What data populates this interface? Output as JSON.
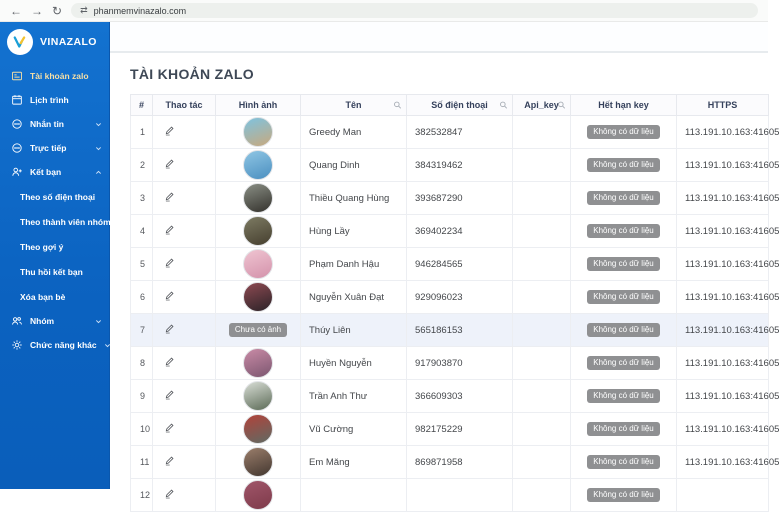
{
  "browser": {
    "url": "phanmemvinazalo.com",
    "back_icon": "←",
    "forward_icon": "→",
    "reload_icon": "↻"
  },
  "sidebar": {
    "brand": "VINAZALO",
    "items": [
      {
        "label": "Tài khoản zalo",
        "icon": "id-card",
        "active": true
      },
      {
        "label": "Lịch trình",
        "icon": "calendar"
      },
      {
        "label": "Nhắn tin",
        "icon": "chat",
        "chevron": "down"
      },
      {
        "label": "Trực tiếp",
        "icon": "chat",
        "chevron": "down"
      },
      {
        "label": "Kết bạn",
        "icon": "person-add",
        "chevron": "up"
      },
      {
        "label": "Theo số điện thoại",
        "sub": true
      },
      {
        "label": "Theo thành viên nhóm",
        "sub": true
      },
      {
        "label": "Theo gợi ý",
        "sub": true
      },
      {
        "label": "Thu hồi kết bạn",
        "sub": true
      },
      {
        "label": "Xóa bạn bè",
        "sub": true
      },
      {
        "label": "Nhóm",
        "icon": "group",
        "chevron": "down"
      },
      {
        "label": "Chức năng khác",
        "icon": "sun",
        "chevron": "down"
      }
    ]
  },
  "main": {
    "title": "TÀI KHOẢN ZALO",
    "table": {
      "columns": [
        {
          "label": "#"
        },
        {
          "label": "Thao tác"
        },
        {
          "label": "Hình ảnh"
        },
        {
          "label": "Tên",
          "searchable": true
        },
        {
          "label": "Số điện thoại",
          "searchable": true
        },
        {
          "label": "Api_key",
          "searchable": true
        },
        {
          "label": "Hết hạn key"
        },
        {
          "label": "HTTPS"
        }
      ],
      "badges": {
        "no_data": "Không có dữ liệu",
        "no_image": "Chưa có ảnh"
      },
      "rows": [
        {
          "index": "1",
          "name": "Greedy Man",
          "phone": "382532847",
          "api_key": "",
          "https": "113.191.10.163:41605",
          "avatar": [
            "#7ec3e0",
            "#c8a97e"
          ]
        },
        {
          "index": "2",
          "name": "Quang Dinh",
          "phone": "384319462",
          "api_key": "",
          "https": "113.191.10.163:41605",
          "avatar": [
            "#8fc6e4",
            "#4b8fc0"
          ]
        },
        {
          "index": "3",
          "name": "Thiều Quang Hùng",
          "phone": "393687290",
          "api_key": "",
          "https": "113.191.10.163:41605",
          "avatar": [
            "#8a8f85",
            "#34322d"
          ]
        },
        {
          "index": "4",
          "name": "Hùng Lầy",
          "phone": "369402234",
          "api_key": "",
          "https": "113.191.10.163:41605",
          "avatar": [
            "#7d7b63",
            "#463f2f"
          ]
        },
        {
          "index": "5",
          "name": "Phạm Danh Hậu",
          "phone": "946284565",
          "api_key": "",
          "https": "113.191.10.163:41605",
          "avatar": [
            "#efc4d1",
            "#d492ab"
          ]
        },
        {
          "index": "6",
          "name": "Nguyễn Xuân Đạt",
          "phone": "929096023",
          "api_key": "",
          "https": "113.191.10.163:41605",
          "avatar": [
            "#8e4a52",
            "#2c2328"
          ]
        },
        {
          "index": "7",
          "name": "Thúy Liên",
          "phone": "565186153",
          "api_key": "",
          "https": "113.191.10.163:41605",
          "no_image": true,
          "highlight": true
        },
        {
          "index": "8",
          "name": "Huyền Nguyễn",
          "phone": "917903870",
          "api_key": "",
          "https": "113.191.10.163:41605",
          "avatar": [
            "#c98ba6",
            "#7c5670"
          ]
        },
        {
          "index": "9",
          "name": "Trần Anh Thư",
          "phone": "366609303",
          "api_key": "",
          "https": "113.191.10.163:41605",
          "avatar": [
            "#d9ded6",
            "#5c6b57"
          ]
        },
        {
          "index": "10",
          "name": "Vũ Cường",
          "phone": "982175229",
          "api_key": "",
          "https": "113.191.10.163:41605",
          "avatar": [
            "#b2423a",
            "#5f6a63"
          ]
        },
        {
          "index": "11",
          "name": "Em Măng",
          "phone": "869871958",
          "api_key": "",
          "https": "113.191.10.163:41605",
          "avatar": [
            "#9b7e6b",
            "#433730"
          ]
        },
        {
          "index": "12",
          "name": "",
          "phone": "",
          "api_key": "",
          "https": "",
          "avatar": [
            "#a0566a",
            "#7e3a4a"
          ],
          "partial": true
        }
      ]
    }
  }
}
